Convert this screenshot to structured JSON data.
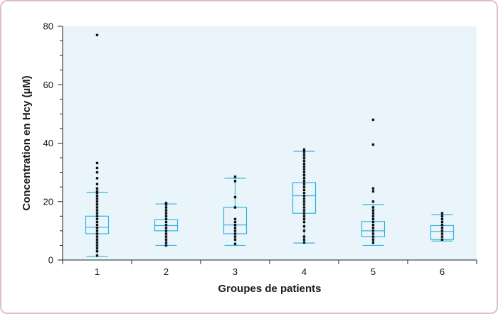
{
  "chart_data": {
    "type": "box",
    "title": "",
    "xlabel": "Groupes de patients",
    "ylabel": "Concentration en Hcy (µM)",
    "ylim": [
      0,
      80
    ],
    "yticks": [
      0,
      20,
      40,
      60,
      80
    ],
    "grid": false,
    "categories": [
      "1",
      "2",
      "3",
      "4",
      "5",
      "6"
    ],
    "boxes": [
      {
        "category": "1",
        "whisker_low": 1.2,
        "q1": 9,
        "median": 11.2,
        "q3": 15,
        "whisker_high": 23.2,
        "points": [
          1.5,
          3,
          4,
          5,
          6,
          7,
          8,
          9,
          10,
          11,
          12,
          13,
          14,
          15,
          16,
          17,
          18,
          19,
          20,
          21,
          22,
          23,
          23.5,
          24.5,
          26,
          28,
          30,
          31.5,
          33.2,
          77
        ]
      },
      {
        "category": "2",
        "whisker_low": 5,
        "q1": 10,
        "median": 11.8,
        "q3": 13.8,
        "whisker_high": 19.2,
        "points": [
          5,
          6,
          7,
          8,
          9,
          10,
          11,
          12,
          13,
          14,
          15,
          16,
          17,
          18,
          19,
          19.5
        ]
      },
      {
        "category": "3",
        "whisker_low": 5,
        "q1": 9,
        "median": 12,
        "q3": 18,
        "whisker_high": 28,
        "points": [
          5.5,
          7,
          8,
          9,
          10,
          11,
          12,
          13,
          14,
          18,
          21.5,
          27,
          28.5
        ]
      },
      {
        "category": "4",
        "whisker_low": 5.8,
        "q1": 16,
        "median": 22,
        "q3": 26.5,
        "whisker_high": 37.2,
        "points": [
          6,
          7,
          8,
          10,
          11.5,
          13,
          14,
          15,
          16,
          17,
          18,
          19,
          20,
          21,
          22,
          23,
          24,
          25,
          26,
          27,
          28,
          29,
          30,
          31,
          32,
          33,
          34,
          35,
          36,
          37,
          37.8
        ]
      },
      {
        "category": "5",
        "whisker_low": 5,
        "q1": 8,
        "median": 10,
        "q3": 13.2,
        "whisker_high": 19,
        "points": [
          6,
          7,
          8,
          9,
          10,
          11,
          12,
          13,
          14,
          15,
          16,
          17,
          18,
          20,
          23.5,
          24.5,
          39.5,
          48
        ]
      },
      {
        "category": "6",
        "whisker_low": 6.5,
        "q1": 7,
        "median": 9.8,
        "q3": 11.8,
        "whisker_high": 15.5,
        "points": [
          7,
          8,
          9,
          10,
          11,
          12,
          13,
          14,
          15,
          16
        ]
      }
    ],
    "colors": {
      "box": "#3ab4e0",
      "points": "#111111",
      "plot_background": "#e9f5fb",
      "frame_border": "#e1bfc9"
    }
  }
}
